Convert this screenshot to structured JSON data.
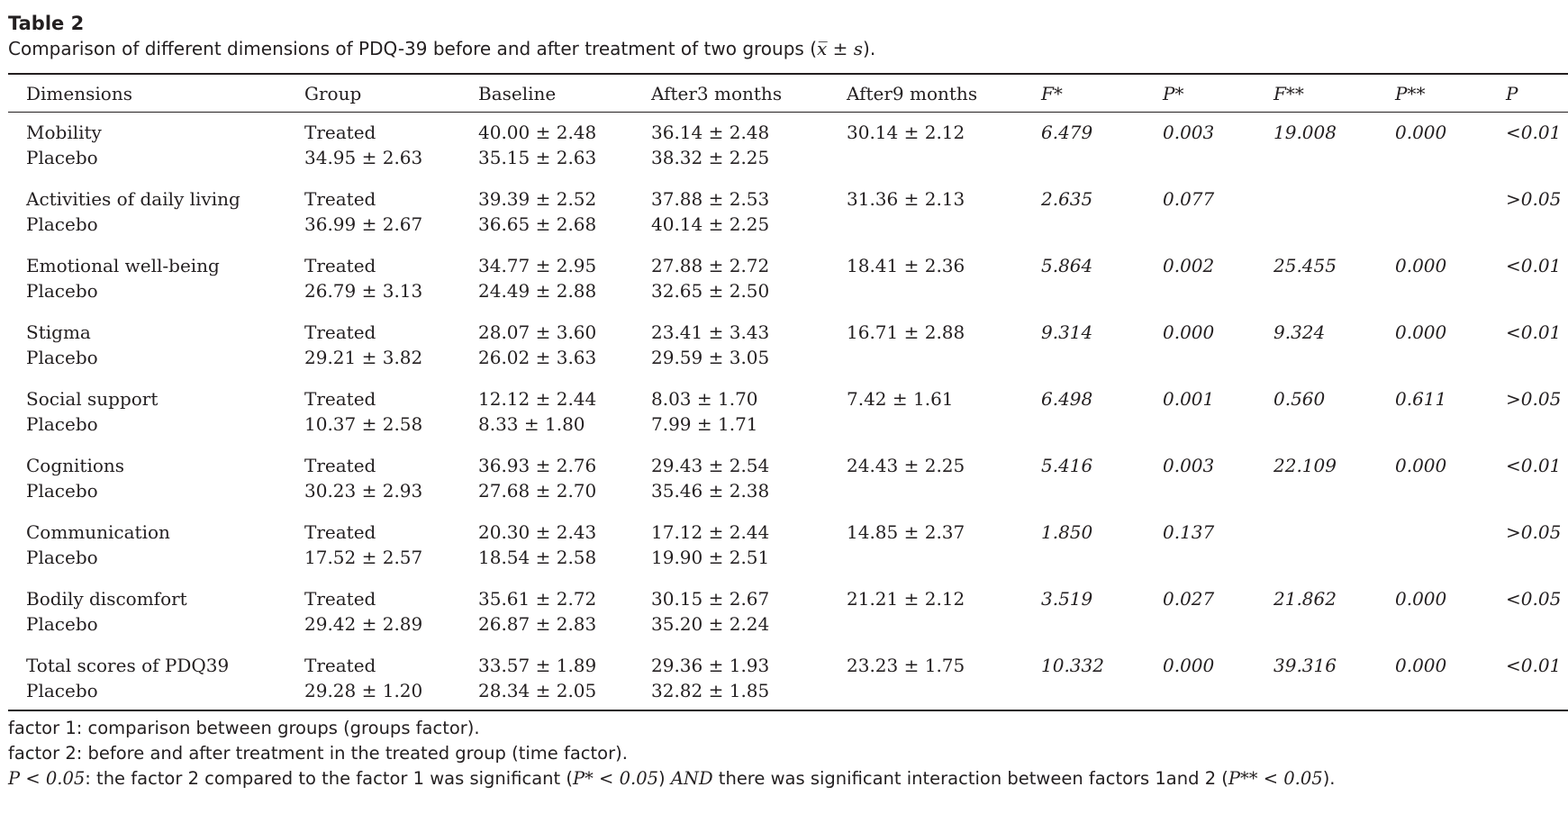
{
  "table_label": "Table 2",
  "caption": {
    "text": "Comparison of different dimensions of PDQ-39 before and after treatment of two groups (",
    "math": "x̅ ± s",
    "end": ")."
  },
  "columns": [
    "Dimensions",
    "Group",
    "Baseline",
    "After3 months",
    "After9 months",
    "F*",
    "P*",
    "F**",
    "P**",
    "P"
  ],
  "rows": [
    {
      "dimension": "Mobility",
      "treated_group": "Treated",
      "treated_baseline": "40.00 ± 2.48",
      "treated_after3": "36.14 ± 2.48",
      "treated_after9": "30.14 ± 2.12",
      "f1": "6.479",
      "p1": "0.003",
      "f2": "19.008",
      "p2": "0.000",
      "p": "<0.01",
      "placebo_label": "Placebo",
      "placebo_group": "34.95 ± 2.63",
      "placebo_baseline": "35.15 ± 2.63",
      "placebo_after3": "38.32 ± 2.25"
    },
    {
      "dimension": "Activities of daily living",
      "treated_group": "Treated",
      "treated_baseline": "39.39 ± 2.52",
      "treated_after3": "37.88 ± 2.53",
      "treated_after9": "31.36 ± 2.13",
      "f1": "2.635",
      "p1": "0.077",
      "f2": "",
      "p2": "",
      "p": ">0.05",
      "placebo_label": "Placebo",
      "placebo_group": "36.99 ± 2.67",
      "placebo_baseline": "36.65 ± 2.68",
      "placebo_after3": "40.14 ± 2.25"
    },
    {
      "dimension": "Emotional well-being",
      "treated_group": "Treated",
      "treated_baseline": "34.77 ± 2.95",
      "treated_after3": "27.88 ± 2.72",
      "treated_after9": "18.41 ± 2.36",
      "f1": "5.864",
      "p1": "0.002",
      "f2": "25.455",
      "p2": "0.000",
      "p": "<0.01",
      "placebo_label": "Placebo",
      "placebo_group": "26.79 ± 3.13",
      "placebo_baseline": "24.49 ± 2.88",
      "placebo_after3": "32.65 ± 2.50"
    },
    {
      "dimension": "Stigma",
      "treated_group": "Treated",
      "treated_baseline": "28.07 ± 3.60",
      "treated_after3": "23.41 ± 3.43",
      "treated_after9": "16.71 ± 2.88",
      "f1": "9.314",
      "p1": "0.000",
      "f2": "9.324",
      "p2": "0.000",
      "p": "<0.01",
      "placebo_label": "Placebo",
      "placebo_group": "29.21 ± 3.82",
      "placebo_baseline": "26.02 ± 3.63",
      "placebo_after3": "29.59 ± 3.05"
    },
    {
      "dimension": "Social support",
      "treated_group": "Treated",
      "treated_baseline": "12.12 ± 2.44",
      "treated_after3": "8.03 ± 1.70",
      "treated_after9": "7.42 ± 1.61",
      "f1": "6.498",
      "p1": "0.001",
      "f2": "0.560",
      "p2": "0.611",
      "p": ">0.05",
      "placebo_label": "Placebo",
      "placebo_group": "10.37 ± 2.58",
      "placebo_baseline": "8.33 ± 1.80",
      "placebo_after3": "7.99 ± 1.71"
    },
    {
      "dimension": "Cognitions",
      "treated_group": "Treated",
      "treated_baseline": "36.93 ± 2.76",
      "treated_after3": "29.43 ± 2.54",
      "treated_after9": "24.43 ± 2.25",
      "f1": "5.416",
      "p1": "0.003",
      "f2": "22.109",
      "p2": "0.000",
      "p": "<0.01",
      "placebo_label": "Placebo",
      "placebo_group": "30.23 ± 2.93",
      "placebo_baseline": "27.68 ± 2.70",
      "placebo_after3": "35.46 ± 2.38"
    },
    {
      "dimension": "Communication",
      "treated_group": "Treated",
      "treated_baseline": "20.30 ± 2.43",
      "treated_after3": "17.12 ± 2.44",
      "treated_after9": "14.85 ± 2.37",
      "f1": "1.850",
      "p1": "0.137",
      "f2": "",
      "p2": "",
      "p": ">0.05",
      "placebo_label": "Placebo",
      "placebo_group": "17.52 ± 2.57",
      "placebo_baseline": "18.54 ± 2.58",
      "placebo_after3": "19.90 ± 2.51"
    },
    {
      "dimension": "Bodily discomfort",
      "treated_group": "Treated",
      "treated_baseline": "35.61 ± 2.72",
      "treated_after3": "30.15 ± 2.67",
      "treated_after9": "21.21 ± 2.12",
      "f1": "3.519",
      "p1": "0.027",
      "f2": "21.862",
      "p2": "0.000",
      "p": "<0.05",
      "placebo_label": "Placebo",
      "placebo_group": "29.42 ± 2.89",
      "placebo_baseline": "26.87 ± 2.83",
      "placebo_after3": "35.20 ± 2.24"
    },
    {
      "dimension": "Total scores of PDQ39",
      "treated_group": "Treated",
      "treated_baseline": "33.57 ± 1.89",
      "treated_after3": "29.36 ± 1.93",
      "treated_after9": "23.23 ± 1.75",
      "f1": "10.332",
      "p1": "0.000",
      "f2": "39.316",
      "p2": "0.000",
      "p": "<0.01",
      "placebo_label": "Placebo",
      "placebo_group": "29.28 ± 1.20",
      "placebo_baseline": "28.34 ± 2.05",
      "placebo_after3": "32.82 ± 1.85"
    }
  ],
  "footnotes": {
    "note1": "factor 1: comparison between groups (groups factor).",
    "note2": "factor 2: before and after treatment in the treated group (time factor).",
    "note3_a": "P < 0.05",
    "note3_b": ": the factor 2 compared to the factor 1 was significant (",
    "note3_c": "P* < 0.05",
    "note3_d": ") ",
    "note3_e": "AND",
    "note3_f": " there was significant interaction between factors 1and 2 (",
    "note3_g": "P** < 0.05",
    "note3_h": ")."
  }
}
